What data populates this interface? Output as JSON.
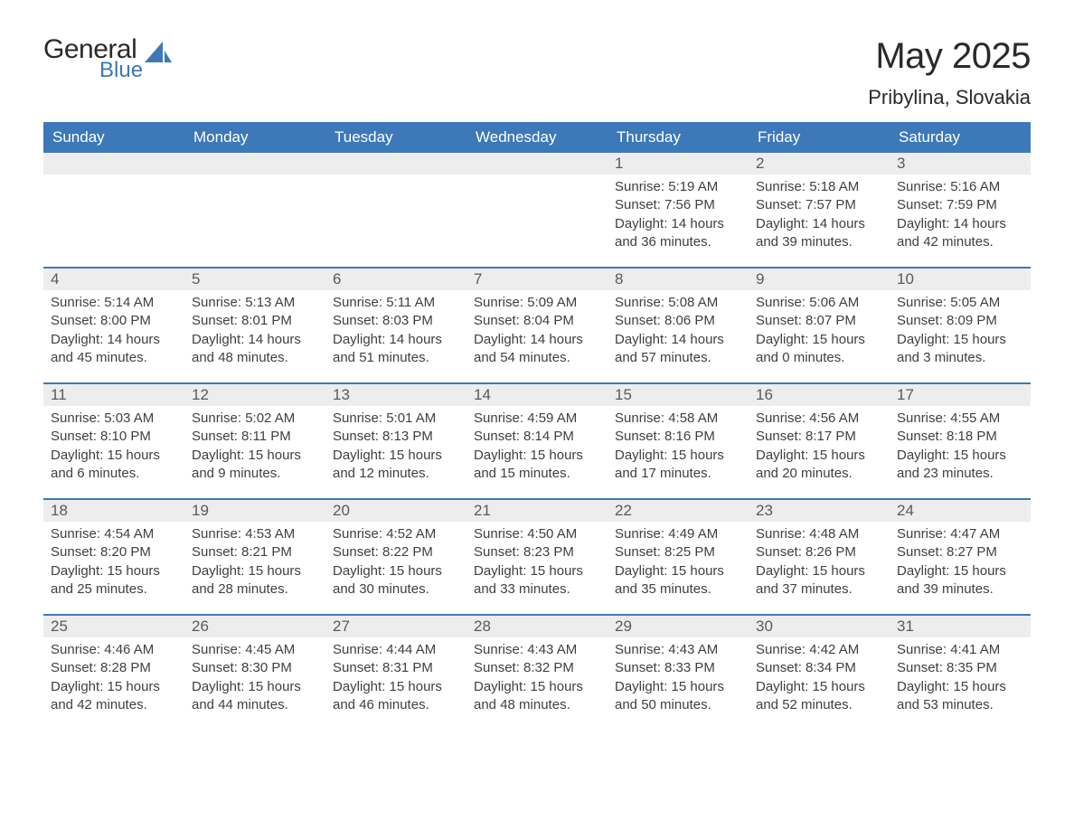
{
  "logo": {
    "word1": "General",
    "word2": "Blue",
    "text_color": "#2a2a2a",
    "accent_color": "#3d79b8"
  },
  "title": "May 2025",
  "location": "Pribylina, Slovakia",
  "colors": {
    "header_bg": "#3d79b8",
    "header_text": "#ffffff",
    "daynum_bg": "#ededed",
    "daynum_text": "#5a5a5a",
    "body_text": "#404040",
    "row_divider": "#3d79b8",
    "page_bg": "#ffffff"
  },
  "weekdays": [
    "Sunday",
    "Monday",
    "Tuesday",
    "Wednesday",
    "Thursday",
    "Friday",
    "Saturday"
  ],
  "weeks": [
    [
      null,
      null,
      null,
      null,
      {
        "n": "1",
        "sunrise": "5:19 AM",
        "sunset": "7:56 PM",
        "dl": "14 hours and 36 minutes."
      },
      {
        "n": "2",
        "sunrise": "5:18 AM",
        "sunset": "7:57 PM",
        "dl": "14 hours and 39 minutes."
      },
      {
        "n": "3",
        "sunrise": "5:16 AM",
        "sunset": "7:59 PM",
        "dl": "14 hours and 42 minutes."
      }
    ],
    [
      {
        "n": "4",
        "sunrise": "5:14 AM",
        "sunset": "8:00 PM",
        "dl": "14 hours and 45 minutes."
      },
      {
        "n": "5",
        "sunrise": "5:13 AM",
        "sunset": "8:01 PM",
        "dl": "14 hours and 48 minutes."
      },
      {
        "n": "6",
        "sunrise": "5:11 AM",
        "sunset": "8:03 PM",
        "dl": "14 hours and 51 minutes."
      },
      {
        "n": "7",
        "sunrise": "5:09 AM",
        "sunset": "8:04 PM",
        "dl": "14 hours and 54 minutes."
      },
      {
        "n": "8",
        "sunrise": "5:08 AM",
        "sunset": "8:06 PM",
        "dl": "14 hours and 57 minutes."
      },
      {
        "n": "9",
        "sunrise": "5:06 AM",
        "sunset": "8:07 PM",
        "dl": "15 hours and 0 minutes."
      },
      {
        "n": "10",
        "sunrise": "5:05 AM",
        "sunset": "8:09 PM",
        "dl": "15 hours and 3 minutes."
      }
    ],
    [
      {
        "n": "11",
        "sunrise": "5:03 AM",
        "sunset": "8:10 PM",
        "dl": "15 hours and 6 minutes."
      },
      {
        "n": "12",
        "sunrise": "5:02 AM",
        "sunset": "8:11 PM",
        "dl": "15 hours and 9 minutes."
      },
      {
        "n": "13",
        "sunrise": "5:01 AM",
        "sunset": "8:13 PM",
        "dl": "15 hours and 12 minutes."
      },
      {
        "n": "14",
        "sunrise": "4:59 AM",
        "sunset": "8:14 PM",
        "dl": "15 hours and 15 minutes."
      },
      {
        "n": "15",
        "sunrise": "4:58 AM",
        "sunset": "8:16 PM",
        "dl": "15 hours and 17 minutes."
      },
      {
        "n": "16",
        "sunrise": "4:56 AM",
        "sunset": "8:17 PM",
        "dl": "15 hours and 20 minutes."
      },
      {
        "n": "17",
        "sunrise": "4:55 AM",
        "sunset": "8:18 PM",
        "dl": "15 hours and 23 minutes."
      }
    ],
    [
      {
        "n": "18",
        "sunrise": "4:54 AM",
        "sunset": "8:20 PM",
        "dl": "15 hours and 25 minutes."
      },
      {
        "n": "19",
        "sunrise": "4:53 AM",
        "sunset": "8:21 PM",
        "dl": "15 hours and 28 minutes."
      },
      {
        "n": "20",
        "sunrise": "4:52 AM",
        "sunset": "8:22 PM",
        "dl": "15 hours and 30 minutes."
      },
      {
        "n": "21",
        "sunrise": "4:50 AM",
        "sunset": "8:23 PM",
        "dl": "15 hours and 33 minutes."
      },
      {
        "n": "22",
        "sunrise": "4:49 AM",
        "sunset": "8:25 PM",
        "dl": "15 hours and 35 minutes."
      },
      {
        "n": "23",
        "sunrise": "4:48 AM",
        "sunset": "8:26 PM",
        "dl": "15 hours and 37 minutes."
      },
      {
        "n": "24",
        "sunrise": "4:47 AM",
        "sunset": "8:27 PM",
        "dl": "15 hours and 39 minutes."
      }
    ],
    [
      {
        "n": "25",
        "sunrise": "4:46 AM",
        "sunset": "8:28 PM",
        "dl": "15 hours and 42 minutes."
      },
      {
        "n": "26",
        "sunrise": "4:45 AM",
        "sunset": "8:30 PM",
        "dl": "15 hours and 44 minutes."
      },
      {
        "n": "27",
        "sunrise": "4:44 AM",
        "sunset": "8:31 PM",
        "dl": "15 hours and 46 minutes."
      },
      {
        "n": "28",
        "sunrise": "4:43 AM",
        "sunset": "8:32 PM",
        "dl": "15 hours and 48 minutes."
      },
      {
        "n": "29",
        "sunrise": "4:43 AM",
        "sunset": "8:33 PM",
        "dl": "15 hours and 50 minutes."
      },
      {
        "n": "30",
        "sunrise": "4:42 AM",
        "sunset": "8:34 PM",
        "dl": "15 hours and 52 minutes."
      },
      {
        "n": "31",
        "sunrise": "4:41 AM",
        "sunset": "8:35 PM",
        "dl": "15 hours and 53 minutes."
      }
    ]
  ],
  "labels": {
    "sunrise": "Sunrise: ",
    "sunset": "Sunset: ",
    "daylight": "Daylight: "
  },
  "typography": {
    "title_fontsize": 40,
    "location_fontsize": 22,
    "weekday_fontsize": 17,
    "daynum_fontsize": 17,
    "body_fontsize": 15
  }
}
